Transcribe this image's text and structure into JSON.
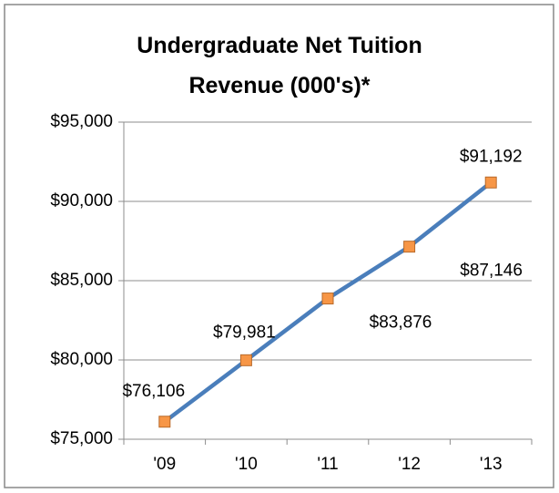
{
  "chart_data": {
    "type": "line",
    "title": "Undergraduate Net Tuition Revenue (000's)*",
    "categories": [
      "'09",
      "'10",
      "'11",
      "'12",
      "'13"
    ],
    "values": [
      76106,
      79981,
      83876,
      87146,
      91192
    ],
    "value_labels": [
      "$76,106",
      "$79,981",
      "$83,876",
      "$87,146",
      "$91,192"
    ],
    "color": "#4a7ebb",
    "marker_color": "#f79646",
    "ylim": [
      75000,
      95000
    ],
    "yticks": [
      {
        "value": 75000,
        "label": "$75,000"
      },
      {
        "value": 80000,
        "label": "$80,000"
      },
      {
        "value": 85000,
        "label": "$85,000"
      },
      {
        "value": 90000,
        "label": "$90,000"
      },
      {
        "value": 95000,
        "label": "$95,000"
      }
    ],
    "grid": true
  }
}
